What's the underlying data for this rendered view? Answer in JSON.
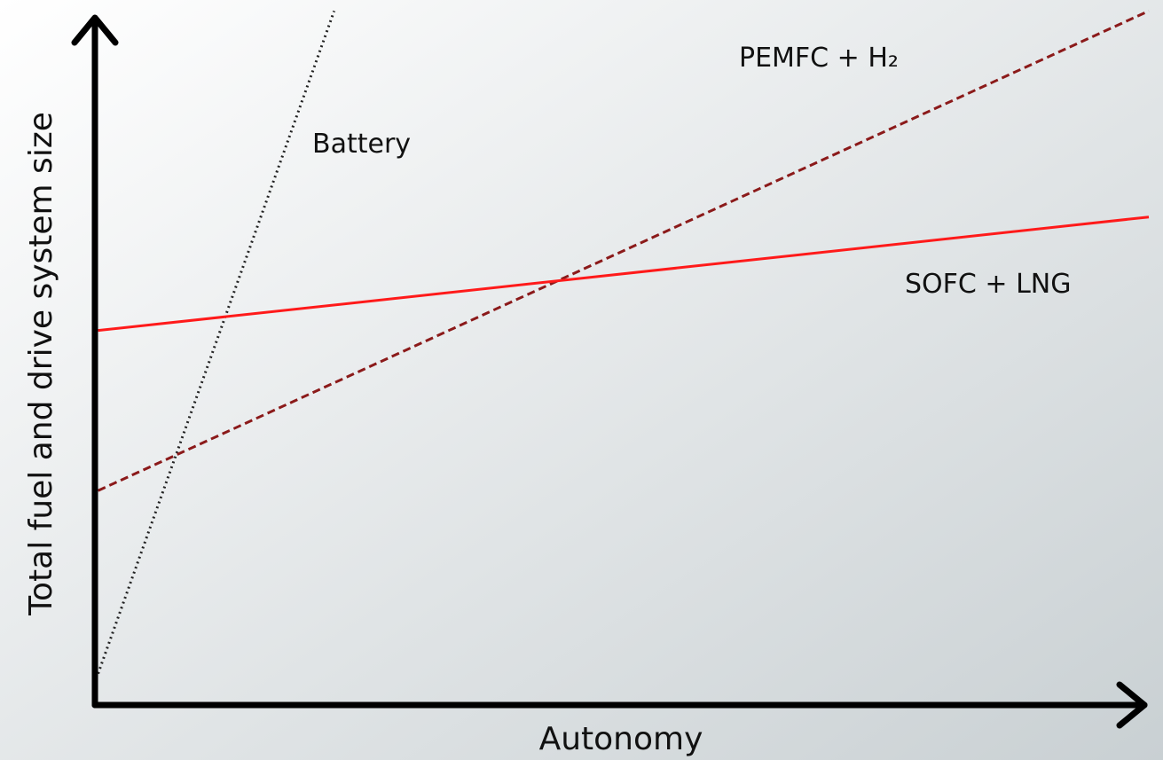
{
  "chart_data": {
    "type": "line",
    "xlabel": "Autonomy",
    "ylabel": "Total fuel and drive system size",
    "xlim": [
      0,
      100
    ],
    "ylim": [
      0,
      100
    ],
    "series": [
      {
        "name": "Battery",
        "color": "#222222",
        "style": "dotted",
        "x": [
          0.3,
          22.7
        ],
        "values": [
          4.5,
          99.7
        ]
      },
      {
        "name": "PEMFC + H₂",
        "color": "#8b1a1a",
        "style": "dashed",
        "x": [
          0.3,
          100
        ],
        "values": [
          30.8,
          99.7
        ]
      },
      {
        "name": "SOFC + LNG",
        "color": "#ff1a1a",
        "style": "solid",
        "x": [
          0.3,
          100
        ],
        "values": [
          53.8,
          70.1
        ]
      }
    ]
  }
}
